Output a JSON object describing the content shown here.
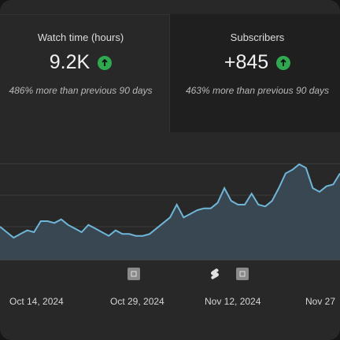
{
  "metrics": [
    {
      "label": "Watch time (hours)",
      "value": "9.2K",
      "sub": "486% more than previous 90 days",
      "trend_icon": "arrow-up-icon"
    },
    {
      "label": "Subscribers",
      "value": "+845",
      "sub": "463% more than previous 90 days",
      "trend_icon": "arrow-up-icon"
    }
  ],
  "chart_data": {
    "type": "area",
    "title": "",
    "xlabel": "",
    "ylabel": "",
    "x_tick_labels": [
      "Oct 14, 2024",
      "Oct 29, 2024",
      "Nov 12, 2024",
      "Nov 27"
    ],
    "values": [
      58,
      55,
      52,
      54,
      56,
      55,
      61,
      61,
      60,
      62,
      59,
      57,
      55,
      59,
      57,
      55,
      53,
      56,
      54,
      54,
      53,
      53,
      54,
      57,
      60,
      63,
      70,
      63,
      65,
      67,
      68,
      68,
      71,
      79,
      72,
      70,
      70,
      76,
      70,
      69,
      72,
      79,
      87,
      89,
      92,
      90,
      79,
      77,
      80,
      81,
      87
    ],
    "ylim": [
      40,
      100
    ],
    "gridlines": true,
    "line_color": "#6fb6d8",
    "fill_color": "#3a4a55"
  },
  "markers": [
    {
      "type": "video",
      "label": "2"
    },
    {
      "type": "shorts",
      "label": ""
    },
    {
      "type": "video",
      "label": "2"
    }
  ],
  "colors": {
    "trend_up": "#2fa84f",
    "card": "#282828"
  }
}
